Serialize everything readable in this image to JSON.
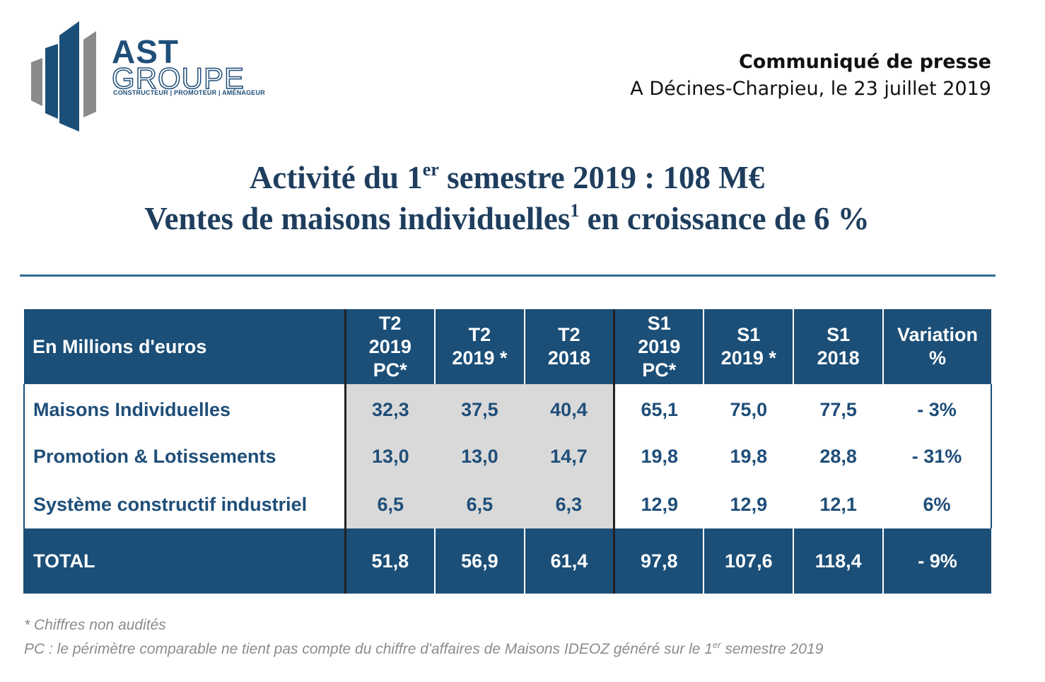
{
  "logo": {
    "name": "AST",
    "sub": "GROUPE",
    "tagline": "CONSTRUCTEUR | PROMOTEUR | AMÉNAGEUR"
  },
  "press": {
    "title": "Communiqué de presse",
    "date": "A Décines-Charpieu, le 23 juillet 2019"
  },
  "headline": {
    "line1_a": "Activité du 1",
    "line1_sup": "er",
    "line1_b": " semestre 2019 : 108 M€",
    "line2_a": "Ventes de maisons individuelles",
    "line2_sup": "1",
    "line2_b": " en croissance de 6 %"
  },
  "table": {
    "header_label": "En Millions d'euros",
    "columns": [
      [
        "T2",
        "2019",
        "PC*"
      ],
      [
        "T2",
        "2019 *"
      ],
      [
        "T2",
        "2018"
      ],
      [
        "S1",
        "2019",
        "PC*"
      ],
      [
        "S1",
        "2019 *"
      ],
      [
        "S1",
        "2018"
      ],
      [
        "Variation",
        "%"
      ]
    ],
    "rows": [
      {
        "label": "Maisons Individuelles",
        "values": [
          "32,3",
          "37,5",
          "40,4",
          "65,1",
          "75,0",
          "77,5",
          "- 3%"
        ]
      },
      {
        "label": "Promotion & Lotissements",
        "values": [
          "13,0",
          "13,0",
          "14,7",
          "19,8",
          "19,8",
          "28,8",
          "- 31%"
        ]
      },
      {
        "label": "Système constructif industriel",
        "values": [
          "6,5",
          "6,5",
          "6,3",
          "12,9",
          "12,9",
          "12,1",
          "6%"
        ]
      }
    ],
    "total": {
      "label": "TOTAL",
      "values": [
        "51,8",
        "56,9",
        "61,4",
        "97,8",
        "107,6",
        "118,4",
        "- 9%"
      ]
    }
  },
  "notes": {
    "note1": "* Chiffres non audités",
    "note2_a": "PC : le périmètre comparable ne tient pas compte du chiffre d'affaires de Maisons IDEOZ généré sur le 1",
    "note2_sup": "er",
    "note2_b": " semestre 2019"
  },
  "colors": {
    "brand_blue": "#1b4f78",
    "logo_grey": "#8a8a8a",
    "highlight_grey": "#d9d9d9"
  }
}
